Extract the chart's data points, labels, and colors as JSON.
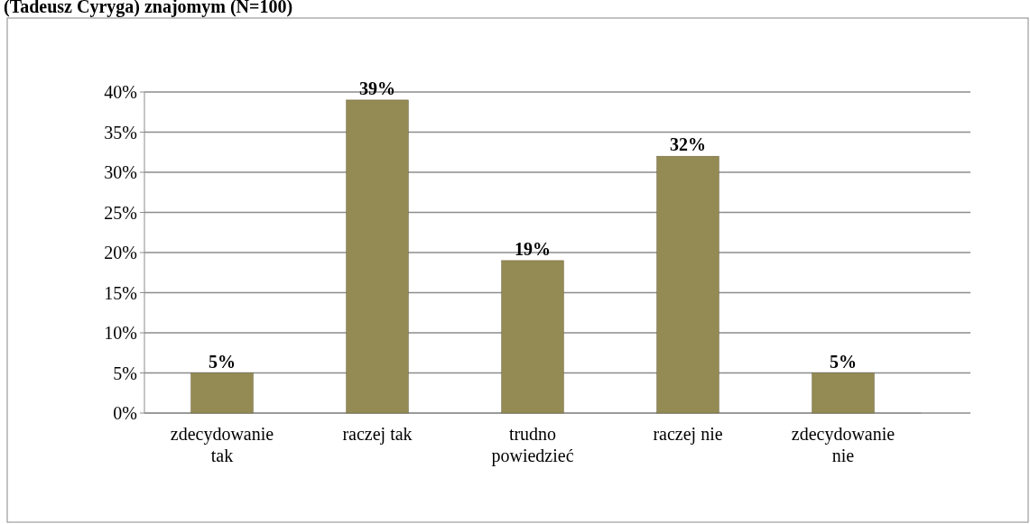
{
  "chart_data": {
    "type": "bar",
    "title": "(Tadeusz Cyryga) znajomym (N=100)",
    "categories": [
      "zdecydowanie tak",
      "raczej tak",
      "trudno powiedzieć",
      "raczej nie",
      "zdecydowanie nie"
    ],
    "values": [
      5,
      39,
      19,
      32,
      5
    ],
    "color": "#948a54",
    "value_labels": [
      "5%",
      "39%",
      "19%",
      "32%",
      "5%"
    ],
    "ylim": [
      0,
      40
    ],
    "yticks": [
      {
        "value": 0,
        "label": "0%"
      },
      {
        "value": 5,
        "label": "5%"
      },
      {
        "value": 10,
        "label": "10%"
      },
      {
        "value": 15,
        "label": "15%"
      },
      {
        "value": 20,
        "label": "20%"
      },
      {
        "value": 25,
        "label": "25%"
      },
      {
        "value": 30,
        "label": "30%"
      },
      {
        "value": 35,
        "label": "35%"
      },
      {
        "value": 40,
        "label": "40%"
      }
    ],
    "grid": "y"
  }
}
